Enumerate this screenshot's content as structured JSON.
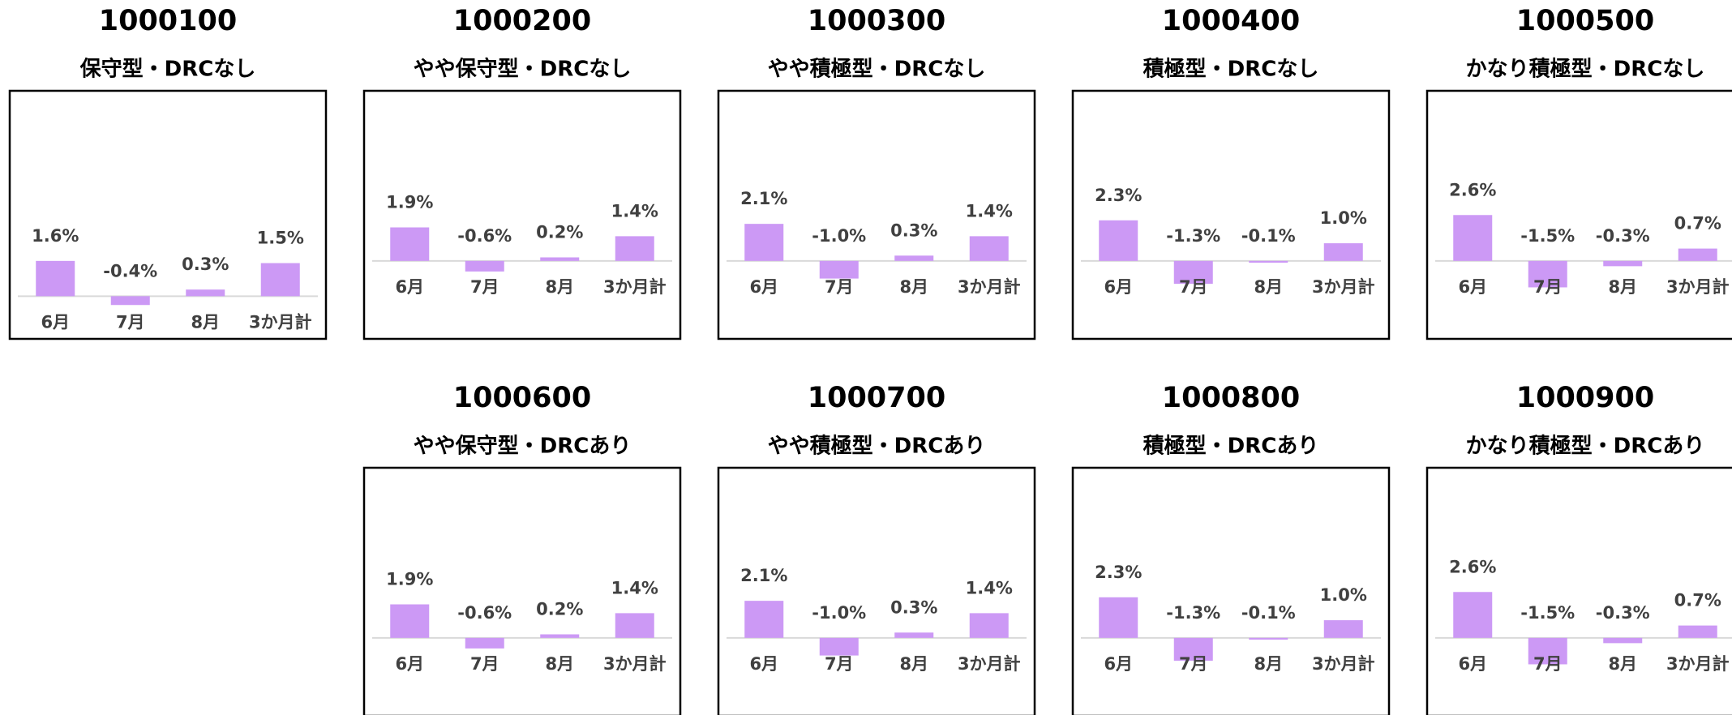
{
  "chart_data": [
    {
      "type": "bar",
      "title": "1000100",
      "subtitle": "保守型・DRCなし",
      "categories": [
        "6月",
        "7月",
        "8月",
        "3か月計"
      ],
      "values": [
        1.6,
        -0.4,
        0.3,
        1.5
      ],
      "value_labels": [
        "1.6%",
        "-0.4%",
        "0.3%",
        "1.5%"
      ],
      "color": "#cc99f5",
      "ylim": [
        -1.2,
        8.8
      ]
    },
    {
      "type": "bar",
      "title": "1000200",
      "subtitle": "やや保守型・DRCなし",
      "categories": [
        "6月",
        "7月",
        "8月",
        "3か月計"
      ],
      "values": [
        1.9,
        -0.6,
        0.2,
        1.4
      ],
      "value_labels": [
        "1.9%",
        "-0.6%",
        "0.2%",
        "1.4%"
      ],
      "color": "#cc99f5",
      "ylim": [
        -3.5,
        9
      ]
    },
    {
      "type": "bar",
      "title": "1000300",
      "subtitle": "やや積極型・DRCなし",
      "categories": [
        "6月",
        "7月",
        "8月",
        "3か月計"
      ],
      "values": [
        2.1,
        -1.0,
        0.3,
        1.4
      ],
      "value_labels": [
        "2.1%",
        "-1.0%",
        "0.3%",
        "1.4%"
      ],
      "color": "#cc99f5",
      "ylim": [
        -3.5,
        9
      ]
    },
    {
      "type": "bar",
      "title": "1000400",
      "subtitle": "積極型・DRCなし",
      "categories": [
        "6月",
        "7月",
        "8月",
        "3か月計"
      ],
      "values": [
        2.3,
        -1.3,
        -0.1,
        1.0
      ],
      "value_labels": [
        "2.3%",
        "-1.3%",
        "-0.1%",
        "1.0%"
      ],
      "color": "#cc99f5",
      "ylim": [
        -3.5,
        9
      ]
    },
    {
      "type": "bar",
      "title": "1000500",
      "subtitle": "かなり積極型・DRCなし",
      "categories": [
        "6月",
        "7月",
        "8月",
        "3か月計"
      ],
      "values": [
        2.6,
        -1.5,
        -0.3,
        0.7
      ],
      "value_labels": [
        "2.6%",
        "-1.5%",
        "-0.3%",
        "0.7%"
      ],
      "color": "#cc99f5",
      "ylim": [
        -3.5,
        9
      ]
    },
    {
      "type": "bar",
      "title": "1000600",
      "subtitle": "やや保守型・DRCあり",
      "categories": [
        "6月",
        "7月",
        "8月",
        "3か月計"
      ],
      "values": [
        1.9,
        -0.6,
        0.2,
        1.4
      ],
      "value_labels": [
        "1.9%",
        "-0.6%",
        "0.2%",
        "1.4%"
      ],
      "color": "#cc99f5",
      "ylim": [
        -3.5,
        9
      ]
    },
    {
      "type": "bar",
      "title": "1000700",
      "subtitle": "やや積極型・DRCあり",
      "categories": [
        "6月",
        "7月",
        "8月",
        "3か月計"
      ],
      "values": [
        2.1,
        -1.0,
        0.3,
        1.4
      ],
      "value_labels": [
        "2.1%",
        "-1.0%",
        "0.3%",
        "1.4%"
      ],
      "color": "#cc99f5",
      "ylim": [
        -3.5,
        9
      ]
    },
    {
      "type": "bar",
      "title": "1000800",
      "subtitle": "積極型・DRCあり",
      "categories": [
        "6月",
        "7月",
        "8月",
        "3か月計"
      ],
      "values": [
        2.3,
        -1.3,
        -0.1,
        1.0
      ],
      "value_labels": [
        "2.3%",
        "-1.3%",
        "-0.1%",
        "1.0%"
      ],
      "color": "#cc99f5",
      "ylim": [
        -3.5,
        9
      ]
    },
    {
      "type": "bar",
      "title": "1000900",
      "subtitle": "かなり積極型・DRCあり",
      "categories": [
        "6月",
        "7月",
        "8月",
        "3か月計"
      ],
      "values": [
        2.6,
        -1.5,
        -0.3,
        0.7
      ],
      "value_labels": [
        "2.6%",
        "-1.5%",
        "-0.3%",
        "0.7%"
      ],
      "color": "#cc99f5",
      "ylim": [
        -3.5,
        9
      ]
    }
  ]
}
